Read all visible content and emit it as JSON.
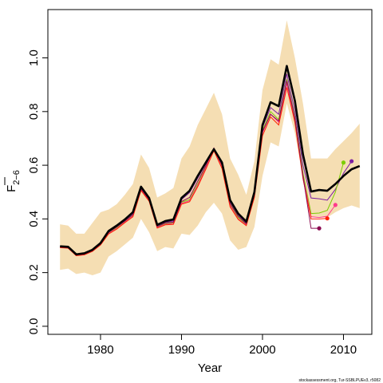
{
  "chart_data": {
    "type": "line",
    "xlabel": "Year",
    "ylabel": "F",
    "ylabel_subscript": "2−6",
    "xlim": [
      1973.5,
      2013.5
    ],
    "ylim": [
      -0.03,
      1.18
    ],
    "xticks": [
      "1980",
      "1990",
      "2000",
      "2010"
    ],
    "xtick_values": [
      1980,
      1990,
      2000,
      2010
    ],
    "yticks": [
      "0.0",
      "0.2",
      "0.4",
      "0.6",
      "0.8",
      "1.0"
    ],
    "ytick_values": [
      0.0,
      0.2,
      0.4,
      0.6,
      0.8,
      1.0
    ],
    "band": {
      "color": "#F5DEB3",
      "x": [
        1975,
        1976,
        1977,
        1978,
        1979,
        1980,
        1981,
        1982,
        1983,
        1984,
        1985,
        1986,
        1987,
        1988,
        1989,
        1990,
        1991,
        1992,
        1993,
        1994,
        1995,
        1996,
        1997,
        1998,
        1999,
        2000,
        2001,
        2002,
        2003,
        2004,
        2005,
        2006,
        2007,
        2008,
        2009,
        2010,
        2011,
        2012
      ],
      "upper": [
        0.38,
        0.375,
        0.345,
        0.345,
        0.385,
        0.425,
        0.435,
        0.455,
        0.49,
        0.53,
        0.64,
        0.59,
        0.48,
        0.495,
        0.515,
        0.625,
        0.67,
        0.75,
        0.81,
        0.87,
        0.79,
        0.625,
        0.565,
        0.49,
        0.615,
        0.88,
        0.995,
        0.975,
        1.14,
        1.0,
        0.83,
        0.625,
        0.625,
        0.625,
        0.66,
        0.69,
        0.72,
        0.755
      ],
      "lower": [
        0.21,
        0.215,
        0.195,
        0.2,
        0.19,
        0.2,
        0.26,
        0.28,
        0.305,
        0.33,
        0.4,
        0.35,
        0.28,
        0.295,
        0.29,
        0.345,
        0.34,
        0.375,
        0.425,
        0.46,
        0.42,
        0.32,
        0.285,
        0.295,
        0.37,
        0.56,
        0.685,
        0.67,
        0.83,
        0.72,
        0.555,
        0.405,
        0.405,
        0.405,
        0.425,
        0.44,
        0.45,
        0.44
      ]
    },
    "main_series": {
      "color": "#000000",
      "x": [
        1975,
        1976,
        1977,
        1978,
        1979,
        1980,
        1981,
        1982,
        1983,
        1984,
        1985,
        1986,
        1987,
        1988,
        1989,
        1990,
        1991,
        1992,
        1993,
        1994,
        1995,
        1996,
        1997,
        1998,
        1999,
        2000,
        2001,
        2002,
        2003,
        2004,
        2005,
        2006,
        2007,
        2008,
        2009,
        2010,
        2011,
        2012
      ],
      "values": [
        0.298,
        0.296,
        0.268,
        0.272,
        0.285,
        0.31,
        0.355,
        0.375,
        0.398,
        0.425,
        0.52,
        0.478,
        0.378,
        0.392,
        0.398,
        0.478,
        0.505,
        0.56,
        0.61,
        0.66,
        0.61,
        0.47,
        0.42,
        0.39,
        0.5,
        0.75,
        0.835,
        0.82,
        0.97,
        0.84,
        0.64,
        0.502,
        0.508,
        0.505,
        0.53,
        0.56,
        0.585,
        0.597
      ]
    },
    "retrospective_series": [
      {
        "color": "#7B1FA2",
        "end_marker": true,
        "x": [
          1975,
          1976,
          1977,
          1978,
          1979,
          1980,
          1981,
          1982,
          1983,
          1984,
          1985,
          1986,
          1987,
          1988,
          1989,
          1990,
          1991,
          1992,
          1993,
          1994,
          1995,
          1996,
          1997,
          1998,
          1999,
          2000,
          2001,
          2002,
          2003,
          2004,
          2005,
          2006,
          2007,
          2008,
          2009,
          2010,
          2011
        ],
        "values": [
          0.296,
          0.294,
          0.266,
          0.27,
          0.283,
          0.308,
          0.353,
          0.372,
          0.395,
          0.42,
          0.515,
          0.475,
          0.375,
          0.388,
          0.392,
          0.472,
          0.498,
          0.552,
          0.605,
          0.655,
          0.605,
          0.465,
          0.415,
          0.385,
          0.495,
          0.74,
          0.815,
          0.79,
          0.94,
          0.8,
          0.6,
          0.478,
          0.475,
          0.47,
          0.51,
          0.57,
          0.615
        ]
      },
      {
        "color": "#7CCD00",
        "end_marker": true,
        "x": [
          1975,
          1976,
          1977,
          1978,
          1979,
          1980,
          1981,
          1982,
          1983,
          1984,
          1985,
          1986,
          1987,
          1988,
          1989,
          1990,
          1991,
          1992,
          1993,
          1994,
          1995,
          1996,
          1997,
          1998,
          1999,
          2000,
          2001,
          2002,
          2003,
          2004,
          2005,
          2006,
          2007,
          2008,
          2009,
          2010
        ],
        "values": [
          0.295,
          0.293,
          0.265,
          0.268,
          0.281,
          0.305,
          0.348,
          0.366,
          0.39,
          0.414,
          0.51,
          0.47,
          0.37,
          0.383,
          0.386,
          0.462,
          0.472,
          0.53,
          0.594,
          0.662,
          0.595,
          0.455,
          0.405,
          0.38,
          0.49,
          0.73,
          0.8,
          0.77,
          0.92,
          0.78,
          0.57,
          0.42,
          0.422,
          0.432,
          0.5,
          0.61
        ]
      },
      {
        "color": "#FF3A8C",
        "end_marker": true,
        "x": [
          1975,
          1976,
          1977,
          1978,
          1979,
          1980,
          1981,
          1982,
          1983,
          1984,
          1985,
          1986,
          1987,
          1988,
          1989,
          1990,
          1991,
          1992,
          1993,
          1994,
          1995,
          1996,
          1997,
          1998,
          1999,
          2000,
          2001,
          2002,
          2003,
          2004,
          2005,
          2006,
          2007,
          2008,
          2009
        ],
        "values": [
          0.294,
          0.292,
          0.264,
          0.267,
          0.28,
          0.304,
          0.346,
          0.364,
          0.388,
          0.411,
          0.508,
          0.468,
          0.368,
          0.38,
          0.383,
          0.458,
          0.468,
          0.525,
          0.59,
          0.658,
          0.592,
          0.45,
          0.4,
          0.378,
          0.485,
          0.72,
          0.79,
          0.76,
          0.905,
          0.77,
          0.56,
          0.408,
          0.405,
          0.41,
          0.452
        ]
      },
      {
        "color": "#FF1F00",
        "end_marker": true,
        "x": [
          1975,
          1976,
          1977,
          1978,
          1979,
          1980,
          1981,
          1982,
          1983,
          1984,
          1985,
          1986,
          1987,
          1988,
          1989,
          1990,
          1991,
          1992,
          1993,
          1994,
          1995,
          1996,
          1997,
          1998,
          1999,
          2000,
          2001,
          2002,
          2003,
          2004,
          2005,
          2006,
          2007,
          2008
        ],
        "values": [
          0.293,
          0.291,
          0.263,
          0.266,
          0.279,
          0.303,
          0.344,
          0.362,
          0.386,
          0.408,
          0.506,
          0.466,
          0.366,
          0.378,
          0.38,
          0.455,
          0.464,
          0.52,
          0.585,
          0.654,
          0.588,
          0.445,
          0.398,
          0.375,
          0.48,
          0.71,
          0.78,
          0.75,
          0.89,
          0.76,
          0.55,
          0.4,
          0.4,
          0.402
        ]
      },
      {
        "color": "#8B0A50",
        "end_marker": true,
        "x": [
          1975,
          1976,
          1977,
          1978,
          1979,
          1980,
          1981,
          1982,
          1983,
          1984,
          1985,
          1986,
          1987,
          1988,
          1989,
          1990,
          1991,
          1992,
          1993,
          1994,
          1995,
          1996,
          1997,
          1998,
          1999,
          2000,
          2001,
          2002,
          2003,
          2004,
          2005,
          2006,
          2007
        ],
        "values": [
          0.295,
          0.293,
          0.265,
          0.269,
          0.282,
          0.306,
          0.35,
          0.37,
          0.392,
          0.416,
          0.512,
          0.472,
          0.372,
          0.385,
          0.388,
          0.465,
          0.48,
          0.54,
          0.598,
          0.664,
          0.6,
          0.458,
          0.41,
          0.382,
          0.49,
          0.725,
          0.79,
          0.765,
          0.915,
          0.775,
          0.56,
          0.365,
          0.365
        ]
      }
    ],
    "footnote": "stockassessment.org, Tur-SSBLPUEv3, r5082",
    "grid": false,
    "legend": "none"
  }
}
